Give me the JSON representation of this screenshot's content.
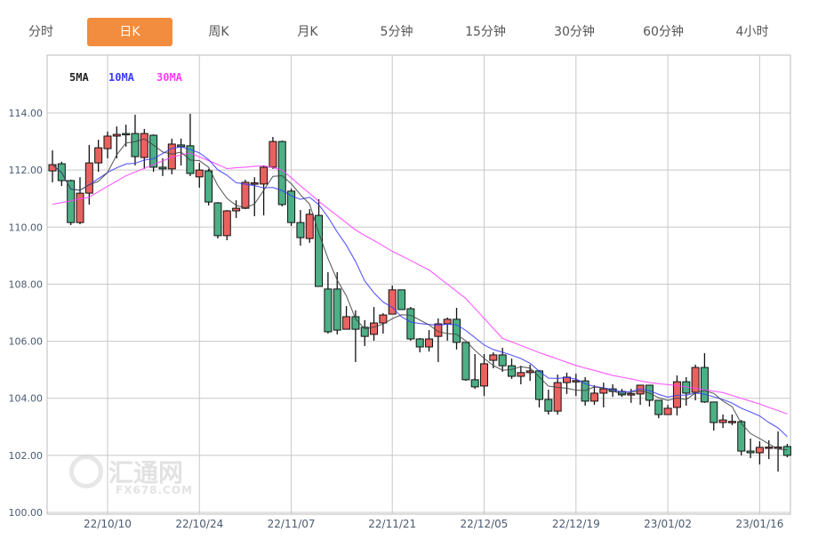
{
  "tabs": [
    {
      "label": "分时",
      "active": false
    },
    {
      "label": "日K",
      "active": true
    },
    {
      "label": "周K",
      "active": false
    },
    {
      "label": "月K",
      "active": false
    },
    {
      "label": "5分钟",
      "active": false
    },
    {
      "label": "15分钟",
      "active": false
    },
    {
      "label": "30分钟",
      "active": false
    },
    {
      "label": "60分钟",
      "active": false
    },
    {
      "label": "4小时",
      "active": false
    }
  ],
  "watermark": {
    "name": "汇通网",
    "domain": "FX678.COM"
  },
  "colors": {
    "accent": "#f28c3e",
    "up": "#e8625f",
    "down": "#4daf86",
    "ma5": "#444444",
    "ma10": "#3b3bff",
    "ma30": "#ff3cff",
    "grid": "#c8c8c8"
  },
  "chart_data": {
    "type": "candlestick",
    "legend": [
      {
        "name": "5MA",
        "color": "#222222"
      },
      {
        "name": "10MA",
        "color": "#3b3bff"
      },
      {
        "name": "30MA",
        "color": "#ff3cff"
      }
    ],
    "legend_placement": "top-left",
    "grid": true,
    "ylim": [
      100,
      114
    ],
    "yticks": [
      "100.00",
      "102.00",
      "104.00",
      "106.00",
      "108.00",
      "110.00",
      "112.00",
      "114.00"
    ],
    "xticks": [
      {
        "label": "22/10/10",
        "index": 6
      },
      {
        "label": "22/10/24",
        "index": 16
      },
      {
        "label": "22/11/07",
        "index": 26
      },
      {
        "label": "22/11/21",
        "index": 37
      },
      {
        "label": "22/12/05",
        "index": 47
      },
      {
        "label": "22/12/19",
        "index": 57
      },
      {
        "label": "23/01/02",
        "index": 67
      },
      {
        "label": "23/01/16",
        "index": 77
      }
    ],
    "ohlc_fields": [
      "open",
      "high",
      "low",
      "close"
    ],
    "candles": [
      [
        111.97,
        112.69,
        111.57,
        112.19
      ],
      [
        112.22,
        112.29,
        111.44,
        111.63
      ],
      [
        111.63,
        111.66,
        110.07,
        110.16
      ],
      [
        110.16,
        111.75,
        110.1,
        111.19
      ],
      [
        111.19,
        112.88,
        110.79,
        112.25
      ],
      [
        112.25,
        113.06,
        111.94,
        112.78
      ],
      [
        112.75,
        113.35,
        112.41,
        113.19
      ],
      [
        113.19,
        113.53,
        112.41,
        113.25
      ],
      [
        113.28,
        113.59,
        112.82,
        113.27
      ],
      [
        113.28,
        113.94,
        112.16,
        112.47
      ],
      [
        112.44,
        113.44,
        112.04,
        113.28
      ],
      [
        113.22,
        113.25,
        111.94,
        112.1
      ],
      [
        112.1,
        112.41,
        111.79,
        112.04
      ],
      [
        112.04,
        113.1,
        111.85,
        112.91
      ],
      [
        112.88,
        113.1,
        112.16,
        112.82
      ],
      [
        112.85,
        113.97,
        111.79,
        111.88
      ],
      [
        111.76,
        112.25,
        111.38,
        112.0
      ],
      [
        111.97,
        112.04,
        110.76,
        110.88
      ],
      [
        110.85,
        110.88,
        109.6,
        109.7
      ],
      [
        109.7,
        110.6,
        109.54,
        110.57
      ],
      [
        110.57,
        110.94,
        110.32,
        110.66
      ],
      [
        110.66,
        111.66,
        110.63,
        111.57
      ],
      [
        111.54,
        111.75,
        110.38,
        111.55
      ],
      [
        111.51,
        112.16,
        110.41,
        112.1
      ],
      [
        112.1,
        113.16,
        112.04,
        113.0
      ],
      [
        113.0,
        113.03,
        110.73,
        110.79
      ],
      [
        111.26,
        111.35,
        110.04,
        110.16
      ],
      [
        110.16,
        110.6,
        109.35,
        109.63
      ],
      [
        109.6,
        110.63,
        109.45,
        110.45
      ],
      [
        110.41,
        110.98,
        107.92,
        107.92
      ],
      [
        107.83,
        108.42,
        106.27,
        106.33
      ],
      [
        107.83,
        108.42,
        106.24,
        106.39
      ],
      [
        106.42,
        107.23,
        106.42,
        106.86
      ],
      [
        106.86,
        107.08,
        105.27,
        106.42
      ],
      [
        106.49,
        106.74,
        105.83,
        106.17
      ],
      [
        106.24,
        107.2,
        106.02,
        106.64
      ],
      [
        106.64,
        106.98,
        106.27,
        106.92
      ],
      [
        106.95,
        107.95,
        106.95,
        107.8
      ],
      [
        107.8,
        107.8,
        107.11,
        107.11
      ],
      [
        107.14,
        107.2,
        106.02,
        106.08
      ],
      [
        106.08,
        106.11,
        105.61,
        105.8
      ],
      [
        105.8,
        106.39,
        105.64,
        106.08
      ],
      [
        106.17,
        106.8,
        105.27,
        106.61
      ],
      [
        106.61,
        106.83,
        106.02,
        106.77
      ],
      [
        106.77,
        107.17,
        105.71,
        105.96
      ],
      [
        105.96,
        105.96,
        104.61,
        104.65
      ],
      [
        104.65,
        105.55,
        104.33,
        104.4
      ],
      [
        104.43,
        105.55,
        104.08,
        105.21
      ],
      [
        105.33,
        105.61,
        105.05,
        105.52
      ],
      [
        105.52,
        105.77,
        104.93,
        105.14
      ],
      [
        105.14,
        105.39,
        104.68,
        104.77
      ],
      [
        104.77,
        105.14,
        104.49,
        104.9
      ],
      [
        104.9,
        105.18,
        104.61,
        104.96
      ],
      [
        104.96,
        104.99,
        103.68,
        103.96
      ],
      [
        103.96,
        104.3,
        103.43,
        103.55
      ],
      [
        103.55,
        104.83,
        103.43,
        104.55
      ],
      [
        104.55,
        104.9,
        104.15,
        104.74
      ],
      [
        104.61,
        104.86,
        104.08,
        104.62
      ],
      [
        104.61,
        104.74,
        103.74,
        103.9
      ],
      [
        103.9,
        104.46,
        103.77,
        104.18
      ],
      [
        104.18,
        104.55,
        103.68,
        104.33
      ],
      [
        104.33,
        104.49,
        104.05,
        104.24
      ],
      [
        104.24,
        104.33,
        104.05,
        104.12
      ],
      [
        104.15,
        104.33,
        103.84,
        104.16
      ],
      [
        104.15,
        104.46,
        103.77,
        104.46
      ],
      [
        104.46,
        104.46,
        103.71,
        103.93
      ],
      [
        103.93,
        103.93,
        103.3,
        103.43
      ],
      [
        103.43,
        103.77,
        103.43,
        103.65
      ],
      [
        103.68,
        104.8,
        103.4,
        104.58
      ],
      [
        104.58,
        104.74,
        103.74,
        104.18
      ],
      [
        104.21,
        105.18,
        103.93,
        105.08
      ],
      [
        105.08,
        105.58,
        103.84,
        103.87
      ],
      [
        103.87,
        103.87,
        102.87,
        103.15
      ],
      [
        103.15,
        103.43,
        102.96,
        103.24
      ],
      [
        103.18,
        103.43,
        103.06,
        103.19
      ],
      [
        103.18,
        103.24,
        102.0,
        102.15
      ],
      [
        102.15,
        102.59,
        101.9,
        102.09
      ],
      [
        102.09,
        102.49,
        101.68,
        102.28
      ],
      [
        102.28,
        102.53,
        101.87,
        102.29
      ],
      [
        102.28,
        102.84,
        101.43,
        102.29
      ],
      [
        102.31,
        102.4,
        101.93,
        102.0
      ]
    ],
    "ma30": [
      110.8,
      110.86,
      110.92,
      110.99,
      111.05,
      111.24,
      111.43,
      111.61,
      111.8,
      111.93,
      112.06,
      112.19,
      112.32,
      112.45,
      112.53,
      112.6,
      112.46,
      112.33,
      112.19,
      112.05,
      112.08,
      112.1,
      112.13,
      112.15,
      112.08,
      112.0,
      111.73,
      111.45,
      111.18,
      110.9,
      110.65,
      110.4,
      110.15,
      109.9,
      109.71,
      109.53,
      109.34,
      109.15,
      108.99,
      108.83,
      108.66,
      108.5,
      108.25,
      108.0,
      107.75,
      107.5,
      107.15,
      106.8,
      106.45,
      106.1,
      105.98,
      105.85,
      105.73,
      105.6,
      105.49,
      105.38,
      105.26,
      105.15,
      105.06,
      104.98,
      104.89,
      104.8,
      104.74,
      104.68,
      104.61,
      104.55,
      104.51,
      104.48,
      104.44,
      104.4,
      104.35,
      104.3,
      104.25,
      104.2,
      104.1,
      104.0,
      103.9,
      103.8,
      103.68,
      103.57,
      103.45
    ]
  }
}
